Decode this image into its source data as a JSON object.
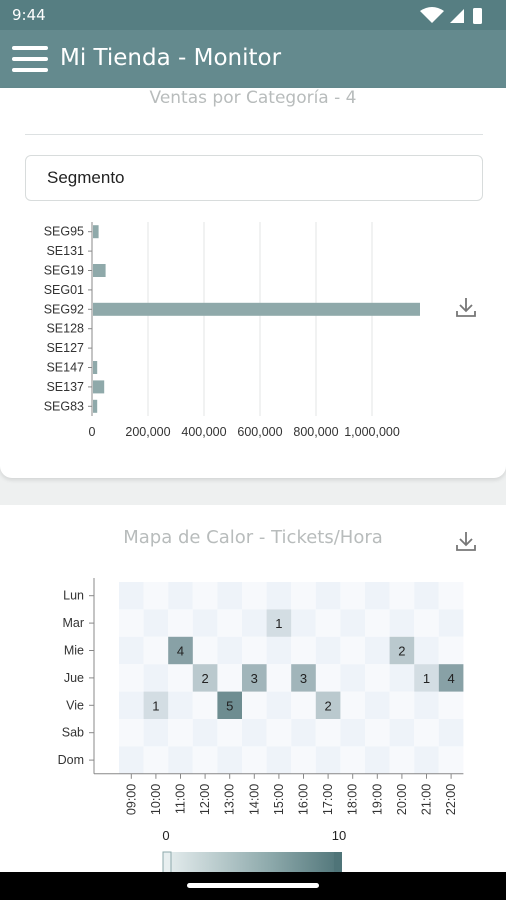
{
  "status_bar": {
    "time": "9:44"
  },
  "app_bar": {
    "title": "Mi Tienda - Monitor"
  },
  "bar_card": {
    "title": "Ventas por Categoría - 4",
    "select_value": "Segmento"
  },
  "heatmap_card": {
    "title": "Mapa de Calor - Tickets/Hora",
    "scale_min": "0",
    "scale_max": "10"
  },
  "colors": {
    "bar": "#8fa9aa",
    "accent": "#567e82",
    "appbar": "#648a8e"
  },
  "chart_data": [
    {
      "type": "bar",
      "orientation": "horizontal",
      "title": "Ventas por Categoría - 4",
      "categories": [
        "SEG95",
        "SE131",
        "SEG19",
        "SEG01",
        "SEG92",
        "SE128",
        "SE127",
        "SE147",
        "SE137",
        "SEG83"
      ],
      "values": [
        20000,
        0,
        45000,
        0,
        1170000,
        0,
        0,
        15000,
        40000,
        15000
      ],
      "xticks": [
        "0",
        "200,000",
        "400,000",
        "600,000",
        "800,000",
        "1,000,000"
      ],
      "xlim": [
        0,
        1200000
      ],
      "grid": true
    },
    {
      "type": "heatmap",
      "title": "Mapa de Calor - Tickets/Hora",
      "x": [
        "09:00",
        "10:00",
        "11:00",
        "12:00",
        "13:00",
        "14:00",
        "15:00",
        "16:00",
        "17:00",
        "18:00",
        "19:00",
        "20:00",
        "21:00",
        "22:00"
      ],
      "y": [
        "Lun",
        "Mar",
        "Mie",
        "Jue",
        "Vie",
        "Sab",
        "Dom"
      ],
      "cells": [
        {
          "day": "Mar",
          "hour": "15:00",
          "value": 1
        },
        {
          "day": "Mie",
          "hour": "11:00",
          "value": 4
        },
        {
          "day": "Mie",
          "hour": "20:00",
          "value": 2
        },
        {
          "day": "Jue",
          "hour": "12:00",
          "value": 2
        },
        {
          "day": "Jue",
          "hour": "14:00",
          "value": 3
        },
        {
          "day": "Jue",
          "hour": "16:00",
          "value": 3
        },
        {
          "day": "Jue",
          "hour": "21:00",
          "value": 1
        },
        {
          "day": "Jue",
          "hour": "22:00",
          "value": 4
        },
        {
          "day": "Vie",
          "hour": "10:00",
          "value": 1
        },
        {
          "day": "Vie",
          "hour": "13:00",
          "value": 5
        },
        {
          "day": "Vie",
          "hour": "17:00",
          "value": 2
        }
      ],
      "range": [
        0,
        10
      ]
    }
  ]
}
